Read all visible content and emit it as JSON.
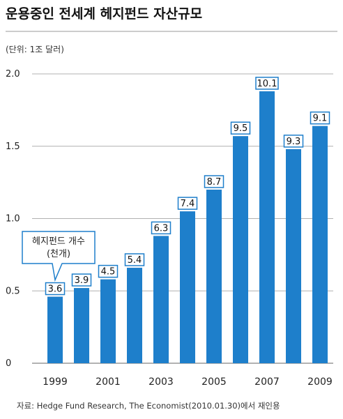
{
  "chart_data": {
    "type": "bar",
    "title": "운용중인 전세계 헤지펀드 자산규모",
    "unit_label": "(단위: 1조 달러)",
    "categories": [
      "1999",
      "2000",
      "2001",
      "2002",
      "2003",
      "2004",
      "2005",
      "2006",
      "2007",
      "2008",
      "2009"
    ],
    "x_tick_labels": [
      "1999",
      "2001",
      "2003",
      "2005",
      "2007",
      "2009"
    ],
    "values": [
      0.46,
      0.52,
      0.58,
      0.66,
      0.88,
      1.05,
      1.2,
      1.57,
      1.88,
      1.48,
      1.64
    ],
    "data_labels": [
      "3.6",
      "3.9",
      "4.5",
      "5.4",
      "6.3",
      "7.4",
      "8.7",
      "9.5",
      "10.1",
      "9.3",
      "9.1"
    ],
    "y_ticks": [
      "0",
      "0.5",
      "1.0",
      "1.5",
      "2.0"
    ],
    "ylim": [
      0,
      2.0
    ],
    "grid": true,
    "callout": {
      "line1": "헤지펀드 개수",
      "line2": "(천개)"
    },
    "source": "자료: Hedge Fund Research, The Economist(2010.01.30)에서 재인용"
  },
  "colors": {
    "bar": "#1e7fcb",
    "label_border": "#1e7fcb",
    "grid": "#b0b0b0",
    "title_rule": "#999999",
    "text": "#222222"
  }
}
